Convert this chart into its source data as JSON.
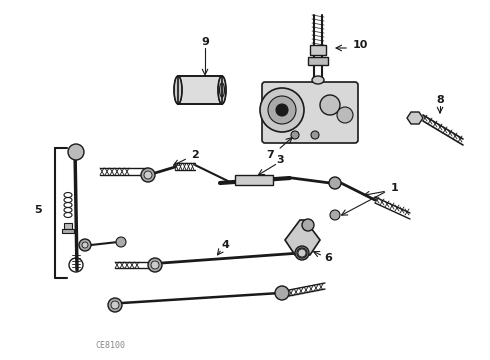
{
  "bg_color": "#ffffff",
  "fg_color": "#1a1a1a",
  "watermark": "CE8100",
  "fig_w": 4.9,
  "fig_h": 3.6,
  "dpi": 100
}
